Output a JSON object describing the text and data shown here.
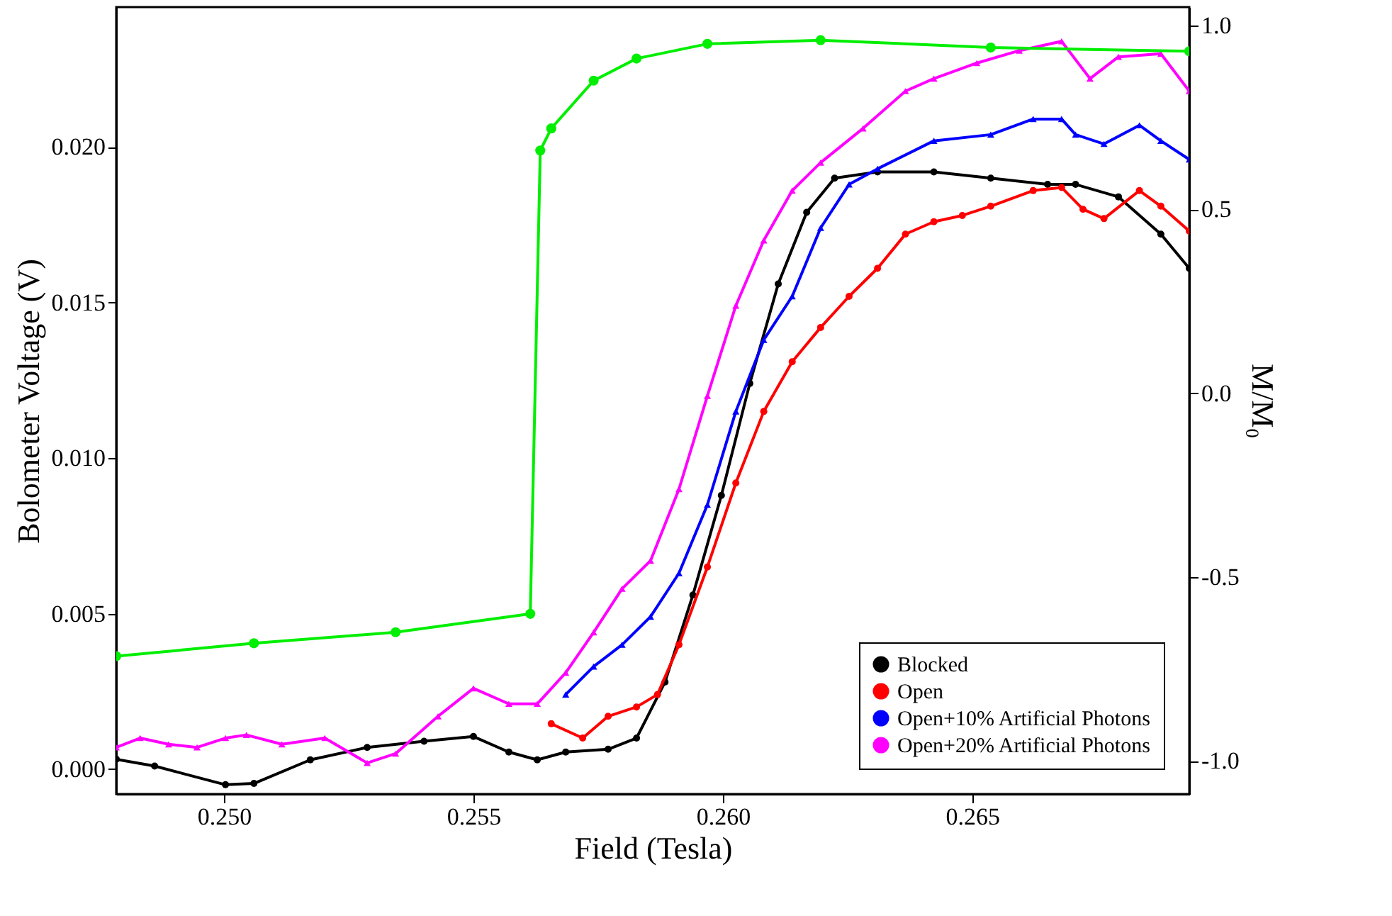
{
  "chart_data": {
    "type": "line",
    "xlabel": "Field (Tesla)",
    "ylabel": "Bolometer Voltage (V)",
    "y2label": "M/M₀",
    "xlim": [
      0.24784,
      0.26935
    ],
    "ylim": [
      -0.0008,
      0.0245
    ],
    "y2lim": [
      -1.09,
      1.05
    ],
    "xticks": [
      {
        "value": 0.25,
        "label": "0.250"
      },
      {
        "value": 0.255,
        "label": "0.255"
      },
      {
        "value": 0.26,
        "label": "0.260"
      },
      {
        "value": 0.265,
        "label": "0.265"
      }
    ],
    "yticks": [
      {
        "value": 0,
        "label": "0.000"
      },
      {
        "value": 0.005,
        "label": "0.005"
      },
      {
        "value": 0.01,
        "label": "0.010"
      },
      {
        "value": 0.015,
        "label": "0.015"
      },
      {
        "value": 0.02,
        "label": "0.020"
      }
    ],
    "y2ticks": [
      {
        "value": -1,
        "label": "-1.0"
      },
      {
        "value": -0.5,
        "label": "-0.5"
      },
      {
        "value": 0,
        "label": "0.0"
      },
      {
        "value": 0.5,
        "label": "0.5"
      },
      {
        "value": 1,
        "label": "1.0"
      }
    ],
    "grid": false,
    "legend": "bottom right",
    "marker": "circle",
    "series": [
      {
        "name": "Blocked",
        "color": "#000000",
        "x": [
          0.24784,
          0.24861,
          0.25003,
          0.2506,
          0.25173,
          0.25287,
          0.25401,
          0.255,
          0.25571,
          0.25628,
          0.25685,
          0.2577,
          0.25827,
          0.25884,
          0.2594,
          0.25997,
          0.26054,
          0.26111,
          0.26168,
          0.26224,
          0.2631,
          0.26423,
          0.26537,
          0.26651,
          0.26707,
          0.26793,
          0.26878,
          0.26935
        ],
        "values": [
          0.00032,
          0.0001,
          -0.0005,
          -0.00046,
          0.0003,
          0.0007,
          0.0009,
          0.00105,
          0.00055,
          0.0003,
          0.00055,
          0.00064,
          0.001,
          0.0028,
          0.0056,
          0.0088,
          0.0124,
          0.0156,
          0.0179,
          0.019,
          0.0192,
          0.0192,
          0.019,
          0.0188,
          0.0188,
          0.0184,
          0.0172,
          0.0161
        ]
      },
      {
        "name": "Open",
        "color": "#ff0000",
        "x": [
          0.25656,
          0.25719,
          0.2577,
          0.25827,
          0.25869,
          0.25912,
          0.25969,
          0.26026,
          0.26082,
          0.26139,
          0.26196,
          0.26253,
          0.2631,
          0.26366,
          0.26423,
          0.2648,
          0.26537,
          0.26622,
          0.26679,
          0.26722,
          0.26764,
          0.26835,
          0.26878,
          0.26935
        ],
        "values": [
          0.00146,
          0.001,
          0.0017,
          0.002,
          0.0024,
          0.004,
          0.0065,
          0.0092,
          0.0115,
          0.0131,
          0.0142,
          0.0152,
          0.0161,
          0.0172,
          0.0176,
          0.0178,
          0.0181,
          0.0186,
          0.0187,
          0.018,
          0.0177,
          0.0186,
          0.0181,
          0.0173
        ]
      },
      {
        "name": "Open+10% Artificial Photons",
        "color": "#0000ff",
        "marker": "triangle",
        "x": [
          0.25685,
          0.25741,
          0.25798,
          0.25855,
          0.25912,
          0.25969,
          0.26026,
          0.26082,
          0.26139,
          0.26196,
          0.26253,
          0.2631,
          0.26423,
          0.26537,
          0.26622,
          0.26679,
          0.26707,
          0.26764,
          0.26835,
          0.26878,
          0.26935
        ],
        "values": [
          0.0024,
          0.0033,
          0.004,
          0.0049,
          0.0063,
          0.0085,
          0.0115,
          0.0138,
          0.0152,
          0.0174,
          0.0188,
          0.0193,
          0.0202,
          0.0204,
          0.0209,
          0.0209,
          0.0204,
          0.0201,
          0.0207,
          0.0202,
          0.0196
        ]
      },
      {
        "name": "Open+20% Artificial Photons",
        "color": "#ff00ff",
        "marker": "triangle",
        "x": [
          0.24784,
          0.24832,
          0.24889,
          0.24946,
          0.25003,
          0.25045,
          0.25116,
          0.25202,
          0.25287,
          0.25344,
          0.25429,
          0.255,
          0.25571,
          0.25628,
          0.25685,
          0.25741,
          0.25798,
          0.25855,
          0.25912,
          0.25969,
          0.26026,
          0.26082,
          0.26139,
          0.26196,
          0.26281,
          0.26366,
          0.26423,
          0.26509,
          0.26594,
          0.26679,
          0.26736,
          0.26793,
          0.26878,
          0.26935
        ],
        "values": [
          0.0007,
          0.001,
          0.0008,
          0.0007,
          0.001,
          0.0011,
          0.0008,
          0.001,
          0.0002,
          0.0005,
          0.0017,
          0.0026,
          0.0021,
          0.0021,
          0.0031,
          0.0044,
          0.0058,
          0.0067,
          0.009,
          0.012,
          0.0149,
          0.017,
          0.0186,
          0.0195,
          0.0206,
          0.0218,
          0.0222,
          0.0227,
          0.0231,
          0.0234,
          0.0222,
          0.0229,
          0.023,
          0.0218
        ]
      },
      {
        "color": "#00ee00",
        "axis": "y2",
        "x": [
          0.24784,
          0.2506,
          0.25344,
          0.25614,
          0.25634,
          0.25656,
          0.25741,
          0.25827,
          0.25969,
          0.26196,
          0.26537,
          0.26935
        ],
        "values": [
          -0.715,
          -0.68,
          -0.65,
          -0.6,
          0.66,
          0.72,
          0.85,
          0.91,
          0.95,
          0.96,
          0.94,
          0.93
        ]
      }
    ]
  }
}
